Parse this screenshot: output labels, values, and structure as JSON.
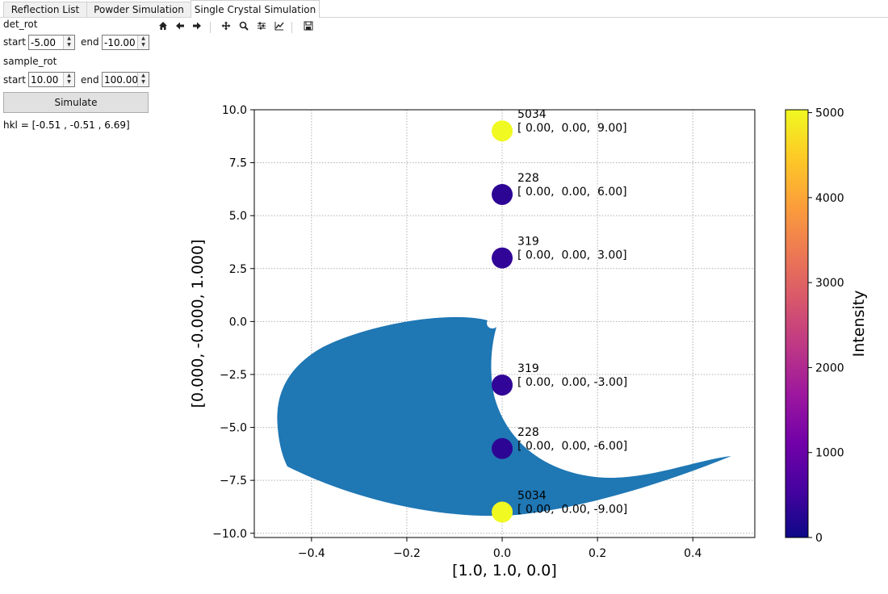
{
  "tabs": [
    {
      "label": "Reflection List",
      "active": false
    },
    {
      "label": "Powder Simulation",
      "active": false
    },
    {
      "label": "Single Crystal Simulation",
      "active": true
    }
  ],
  "panel": {
    "det_rot": {
      "label": "det_rot",
      "start_label": "start",
      "start": "-5.00",
      "end_label": "end",
      "end": "-10.00"
    },
    "sample_rot": {
      "label": "sample_rot",
      "start_label": "start",
      "start": "10.00",
      "end_label": "end",
      "end": "100.00"
    },
    "simulate_label": "Simulate",
    "hkl_readout": "hkl = [-0.51 , -0.51 ,  6.69]"
  },
  "toolbar": {
    "icons": [
      "home-icon",
      "back-arrow-icon",
      "forward-arrow-icon",
      "pan-icon",
      "zoom-icon",
      "configure-subplots-icon",
      "edit-axis-icon",
      "save-icon"
    ]
  },
  "chart_data": {
    "type": "scatter",
    "xlabel": "[1.0, 1.0, 0.0]",
    "ylabel": "[0.000, -0.000, 1.000]",
    "xlim": [
      -0.52,
      0.53
    ],
    "ylim": [
      -10.2,
      10.0
    ],
    "xticks": [
      -0.4,
      -0.2,
      0.0,
      0.2,
      0.4
    ],
    "xtick_labels": [
      "−0.4",
      "−0.2",
      "0.0",
      "0.2",
      "0.4"
    ],
    "yticks": [
      10.0,
      7.5,
      5.0,
      2.5,
      0.0,
      -2.5,
      -5.0,
      -7.5,
      -10.0
    ],
    "ytick_labels": [
      "10.0",
      "7.5",
      "5.0",
      "2.5",
      "0.0",
      "−2.5",
      "−5.0",
      "−7.5",
      "−10.0"
    ],
    "grid": true,
    "region_color": "#1f77b4",
    "points": [
      {
        "x": 0.0,
        "y": 9.0,
        "intensity": 5034,
        "label_int": "5034",
        "label_hkl": "[ 0.00,  0.00,  9.00]",
        "color": "#f0f921"
      },
      {
        "x": 0.0,
        "y": 6.0,
        "intensity": 228,
        "label_int": "228",
        "label_hkl": "[ 0.00,  0.00,  6.00]",
        "color": "#2d0594"
      },
      {
        "x": 0.0,
        "y": 3.0,
        "intensity": 319,
        "label_int": "319",
        "label_hkl": "[ 0.00,  0.00,  3.00]",
        "color": "#310597"
      },
      {
        "x": 0.0,
        "y": -3.0,
        "intensity": 319,
        "label_int": "319",
        "label_hkl": "[ 0.00,  0.00, -3.00]",
        "color": "#310597"
      },
      {
        "x": 0.0,
        "y": -6.0,
        "intensity": 228,
        "label_int": "228",
        "label_hkl": "[ 0.00,  0.00, -6.00]",
        "color": "#2d0594"
      },
      {
        "x": 0.0,
        "y": -9.0,
        "intensity": 5034,
        "label_int": "5034",
        "label_hkl": "[ 0.00,  0.00, -9.00]",
        "color": "#f0f921"
      }
    ],
    "colorbar": {
      "label": "Intensity",
      "range": [
        0,
        5034
      ],
      "ticks": [
        0,
        1000,
        2000,
        3000,
        4000,
        5000
      ],
      "tick_labels": [
        "0",
        "1000",
        "2000",
        "3000",
        "4000",
        "5000"
      ],
      "colormap": "plasma",
      "stops": [
        "#0d0887",
        "#46039f",
        "#7201a8",
        "#9c179e",
        "#bd3786",
        "#d8576b",
        "#ed7953",
        "#fb9f3a",
        "#fdca26",
        "#f0f921"
      ]
    }
  }
}
